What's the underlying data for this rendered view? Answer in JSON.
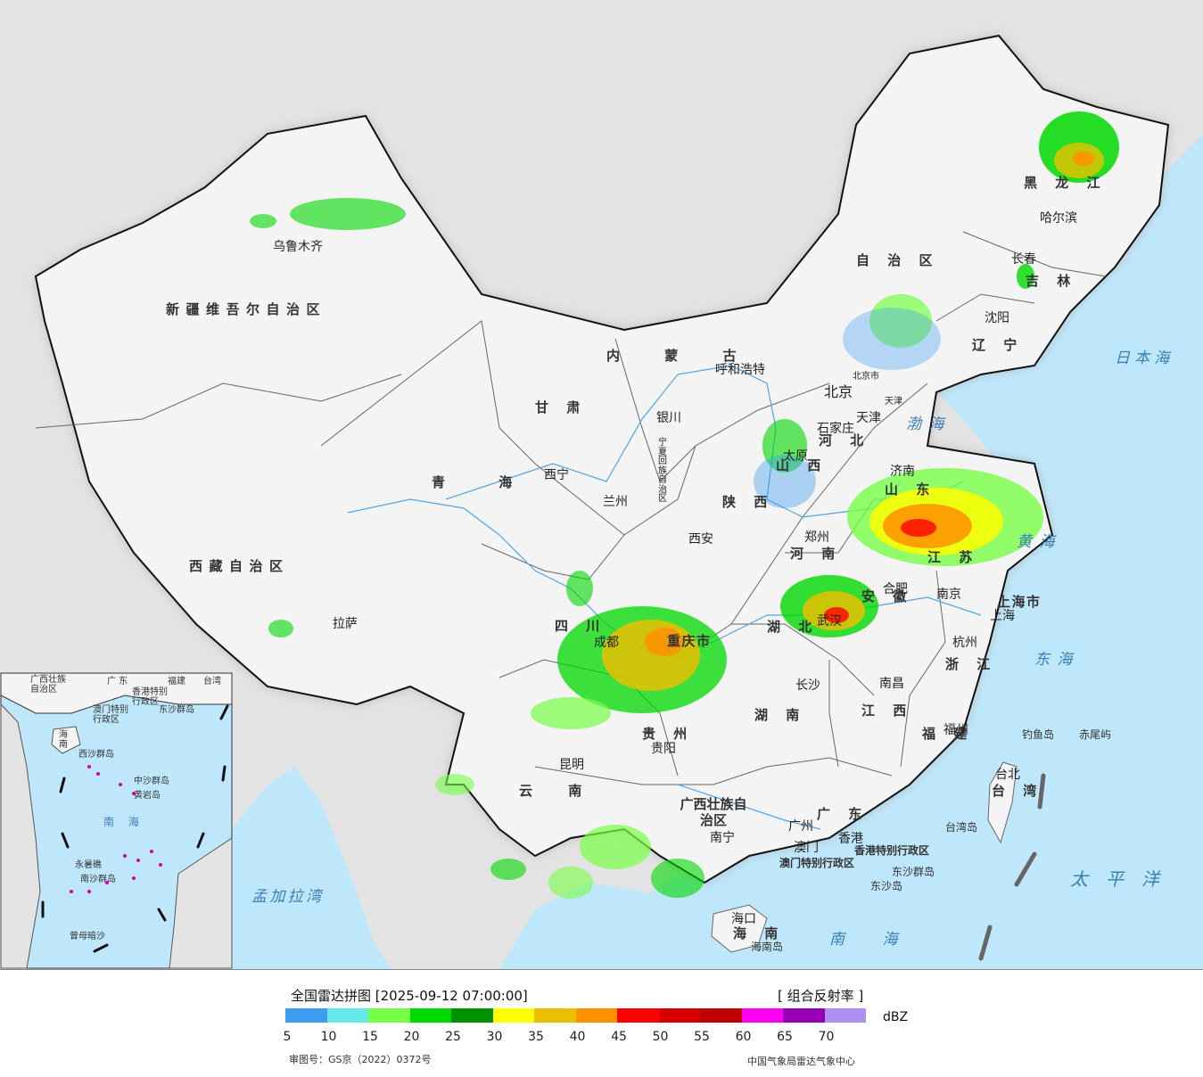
{
  "map": {
    "sea_color": "#bfe7fb",
    "land_color": "#f4f4f4",
    "foreign_land_color": "#e3e3e3",
    "provinces": [
      {
        "key": "xinjiang",
        "label": "新疆维吾尔自治区"
      },
      {
        "key": "xizang",
        "label": "西藏自治区"
      },
      {
        "key": "qinghai",
        "label": "青 海"
      },
      {
        "key": "gansu",
        "label": "甘 肃"
      },
      {
        "key": "neimenggu",
        "label": "内 蒙 古"
      },
      {
        "key": "zizhi",
        "label": "自 治 区"
      },
      {
        "key": "heilongjiang",
        "label": "黑 龙 江"
      },
      {
        "key": "jilin",
        "label": "吉 林"
      },
      {
        "key": "liaoning",
        "label": "辽 宁"
      },
      {
        "key": "hebei",
        "label": "河 北"
      },
      {
        "key": "shanxi",
        "label": "山 西"
      },
      {
        "key": "shandong",
        "label": "山 东"
      },
      {
        "key": "henan",
        "label": "河 南"
      },
      {
        "key": "shaanxi",
        "label": "陕 西"
      },
      {
        "key": "sichuan",
        "label": "四 川"
      },
      {
        "key": "hubei",
        "label": "湖 北"
      },
      {
        "key": "anhui",
        "label": "安 徽"
      },
      {
        "key": "jiangsu",
        "label": "江 苏"
      },
      {
        "key": "zhejiang",
        "label": "浙 江"
      },
      {
        "key": "jiangxi",
        "label": "江 西"
      },
      {
        "key": "hunan",
        "label": "湖 南"
      },
      {
        "key": "guizhou",
        "label": "贵 州"
      },
      {
        "key": "yunnan",
        "label": "云 南"
      },
      {
        "key": "guangxi",
        "label": "广西壮族自治区"
      },
      {
        "key": "guangdong",
        "label": "广 东"
      },
      {
        "key": "fujian",
        "label": "福 建"
      },
      {
        "key": "taiwan",
        "label": "台 湾"
      },
      {
        "key": "hainan",
        "label": "海 南"
      },
      {
        "key": "chongqing",
        "label": "重庆市"
      },
      {
        "key": "shanghai",
        "label": "上海市"
      },
      {
        "key": "tianjin",
        "label": "天津"
      },
      {
        "key": "ningxia",
        "label": "宁夏回族自治区"
      },
      {
        "key": "hongkong",
        "label": "香港特别行政区"
      },
      {
        "key": "macau",
        "label": "澳门特别行政区"
      }
    ],
    "cities": [
      {
        "key": "urumqi",
        "label": "乌鲁木齐"
      },
      {
        "key": "lhasa",
        "label": "拉萨"
      },
      {
        "key": "xining",
        "label": "西宁"
      },
      {
        "key": "lanzhou",
        "label": "兰州"
      },
      {
        "key": "yinchuan",
        "label": "银川"
      },
      {
        "key": "hohhot",
        "label": "呼和浩特"
      },
      {
        "key": "harbin",
        "label": "哈尔滨"
      },
      {
        "key": "changchun",
        "label": "长春"
      },
      {
        "key": "shenyang",
        "label": "沈阳"
      },
      {
        "key": "beijing",
        "label": "北京"
      },
      {
        "key": "beijingshi",
        "label": "北京市"
      },
      {
        "key": "tianjin_c",
        "label": "天津"
      },
      {
        "key": "shijiazhuang",
        "label": "石家庄"
      },
      {
        "key": "taiyuan",
        "label": "太原"
      },
      {
        "key": "jinan",
        "label": "济南"
      },
      {
        "key": "zhengzhou",
        "label": "郑州"
      },
      {
        "key": "xian",
        "label": "西安"
      },
      {
        "key": "chengdu",
        "label": "成都"
      },
      {
        "key": "wuhan",
        "label": "武汉"
      },
      {
        "key": "hefei",
        "label": "合肥"
      },
      {
        "key": "nanjing",
        "label": "南京"
      },
      {
        "key": "shanghai_c",
        "label": "上海"
      },
      {
        "key": "hangzhou",
        "label": "杭州"
      },
      {
        "key": "nanchang",
        "label": "南昌"
      },
      {
        "key": "changsha",
        "label": "长沙"
      },
      {
        "key": "guiyang",
        "label": "贵阳"
      },
      {
        "key": "kunming",
        "label": "昆明"
      },
      {
        "key": "nanning",
        "label": "南宁"
      },
      {
        "key": "guangzhou",
        "label": "广州"
      },
      {
        "key": "hongkong_c",
        "label": "香港"
      },
      {
        "key": "macau_c",
        "label": "澳门"
      },
      {
        "key": "fuzhou",
        "label": "福州"
      },
      {
        "key": "taibei",
        "label": "台北"
      },
      {
        "key": "haikou",
        "label": "海口"
      }
    ],
    "seas": [
      {
        "key": "bohai",
        "label": "渤海"
      },
      {
        "key": "huanghai",
        "label": "黄海"
      },
      {
        "key": "donghai",
        "label": "东海"
      },
      {
        "key": "nanhai",
        "label": "南海"
      },
      {
        "key": "riben",
        "label": "日本海"
      },
      {
        "key": "taiping",
        "label": "太平洋"
      },
      {
        "key": "mengjiala",
        "label": "孟加拉湾"
      }
    ],
    "islands": [
      {
        "key": "diaoyu",
        "label": "钓鱼岛"
      },
      {
        "key": "chiwei",
        "label": "赤尾屿"
      },
      {
        "key": "taiwan_isl",
        "label": "台湾岛"
      },
      {
        "key": "dongsha_qd",
        "label": "东沙群岛"
      },
      {
        "key": "dongsha_d",
        "label": "东沙岛"
      },
      {
        "key": "hainan_isl",
        "label": "海南岛"
      }
    ],
    "inset": {
      "labels": [
        {
          "key": "gx",
          "label": "广西壮族\n自治区"
        },
        {
          "key": "gd",
          "label": "广 东"
        },
        {
          "key": "fj",
          "label": "福建"
        },
        {
          "key": "tw",
          "label": "台湾"
        },
        {
          "key": "hk",
          "label": "香港特别\n行政区"
        },
        {
          "key": "mo",
          "label": "澳门特别\n行政区"
        },
        {
          "key": "dsqd",
          "label": "东沙群岛"
        },
        {
          "key": "hn",
          "label": "海\n南"
        },
        {
          "key": "xsqd",
          "label": "西沙群岛"
        },
        {
          "key": "zsqd",
          "label": "中沙群岛"
        },
        {
          "key": "hyd",
          "label": "黄岩岛"
        },
        {
          "key": "nanhai",
          "label": "南\n海"
        },
        {
          "key": "nsqd",
          "label": "南沙群岛"
        },
        {
          "key": "yld",
          "label": "永暑礁"
        },
        {
          "key": "zmas",
          "label": "曾母暗沙"
        }
      ]
    }
  },
  "legend": {
    "title": "全国雷达拼图 [2025-09-12 07:00:00]",
    "product": "[ 组合反射率 ]",
    "unit": "dBZ",
    "colors": [
      "#3d9cf0",
      "#65e8e8",
      "#77ff46",
      "#00d800",
      "#009000",
      "#ffff00",
      "#e8c000",
      "#ff9000",
      "#ff0000",
      "#d60000",
      "#c00000",
      "#ff00f0",
      "#9600b4",
      "#ad90f0"
    ],
    "ticks": [
      "5",
      "10",
      "15",
      "20",
      "25",
      "30",
      "35",
      "40",
      "45",
      "50",
      "55",
      "60",
      "65",
      "70"
    ],
    "approval": "审图号：GS京（2022）0372号",
    "agency": "中国气象局雷达气象中心"
  }
}
